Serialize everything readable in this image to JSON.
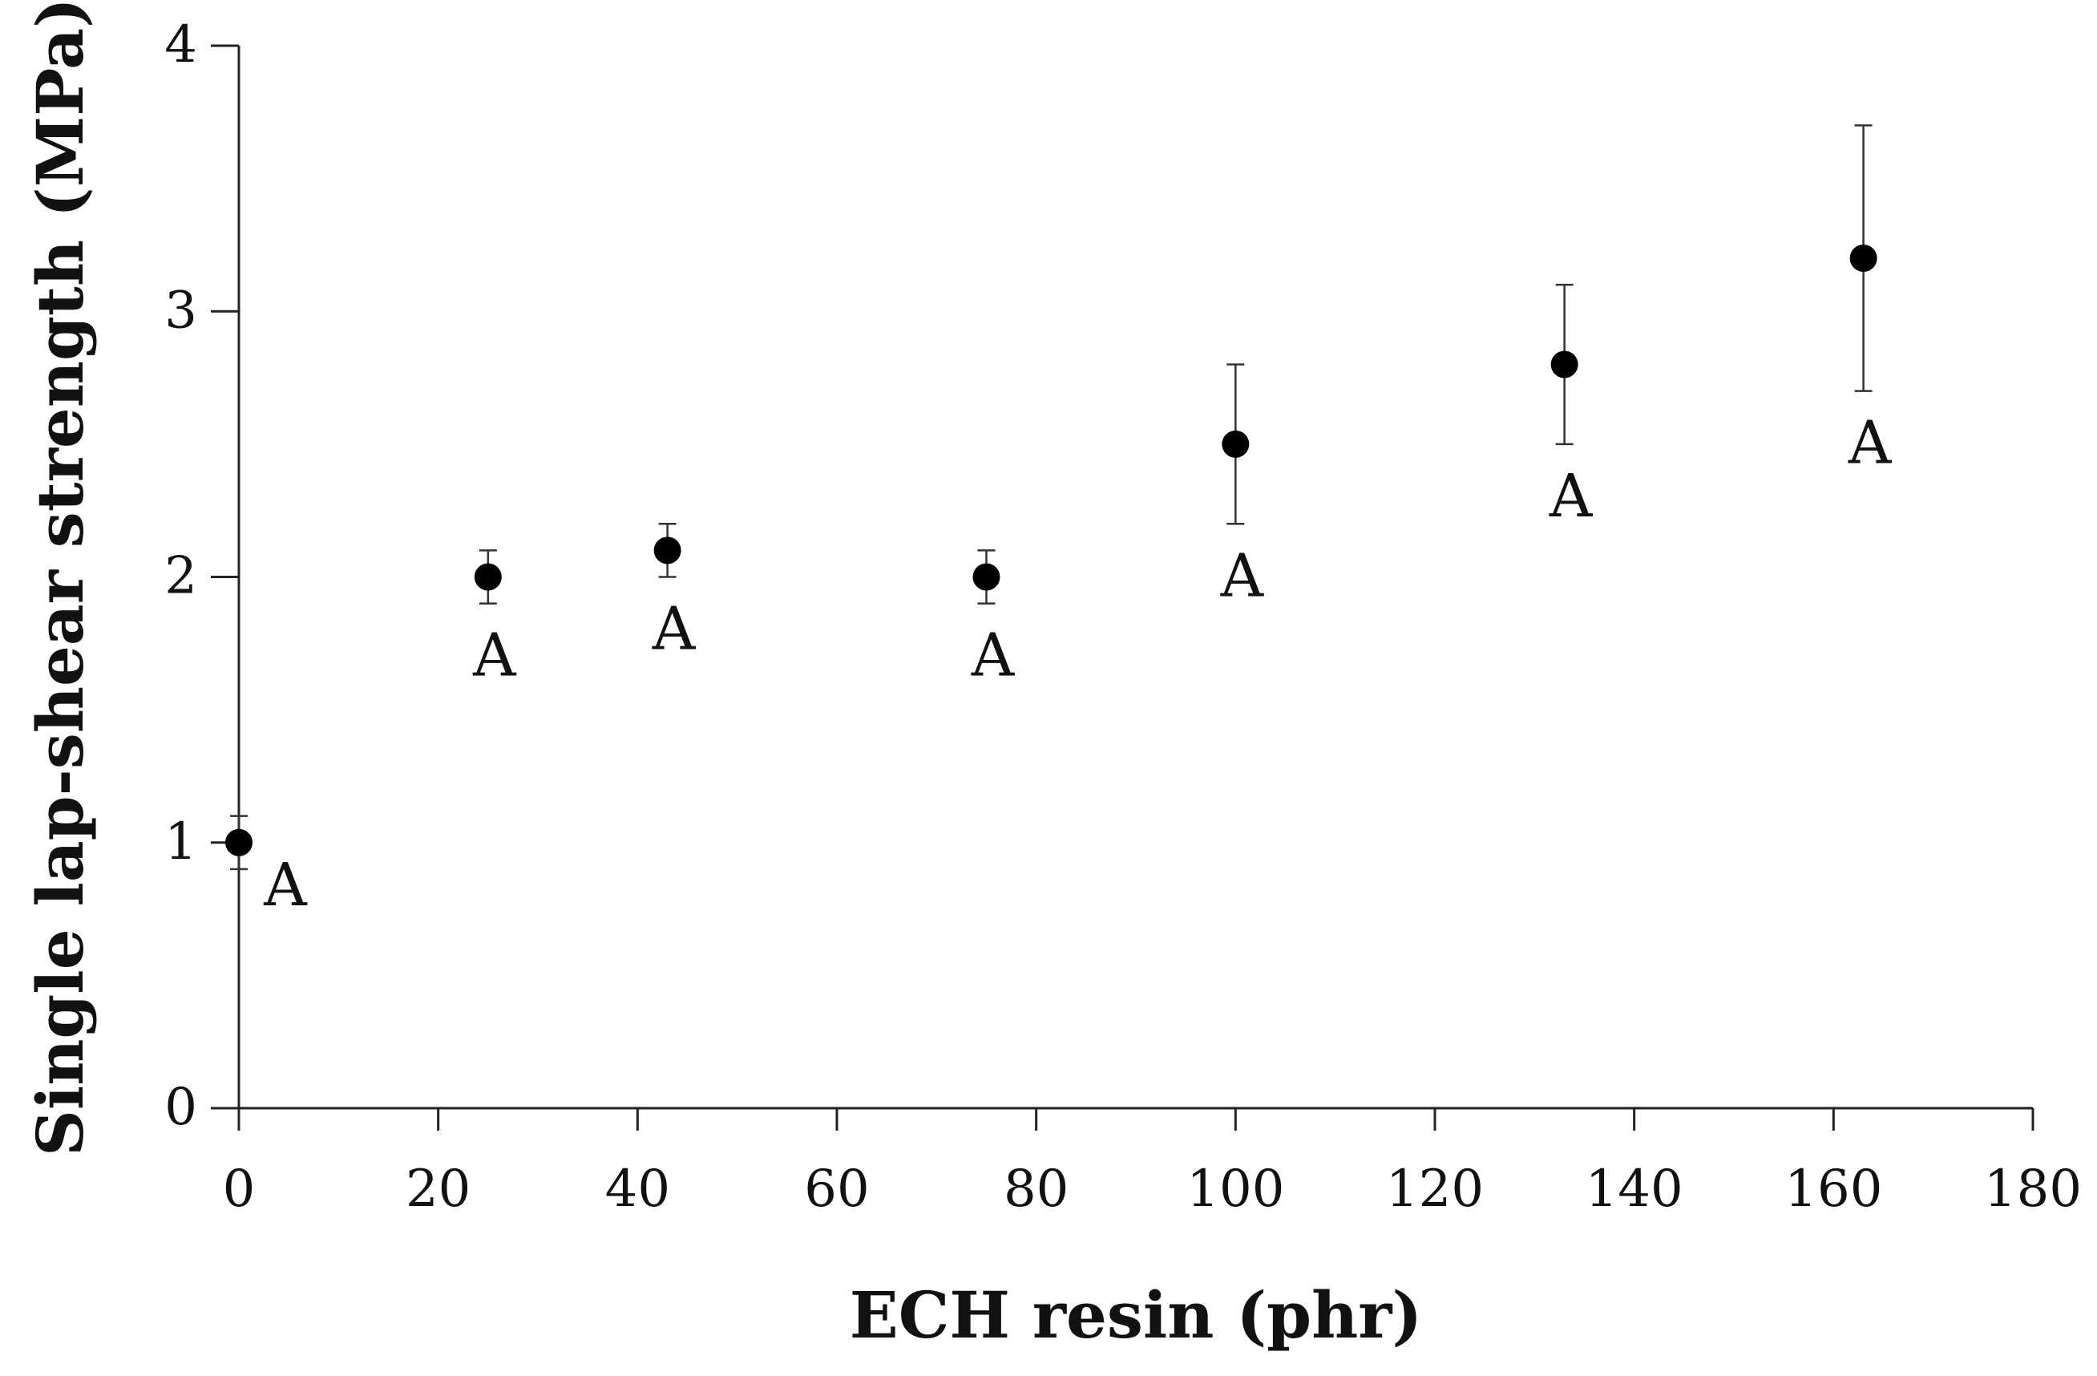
{
  "chart_data": {
    "type": "scatter",
    "title": "",
    "xlabel": "ECH resin (phr)",
    "ylabel": "Single lap-shear strength (MPa)",
    "xlim": [
      0,
      180
    ],
    "ylim": [
      0,
      4
    ],
    "x_ticks": [
      0,
      20,
      40,
      60,
      80,
      100,
      120,
      140,
      160,
      180
    ],
    "y_ticks": [
      0,
      1,
      2,
      3,
      4
    ],
    "grid": false,
    "legend": "none",
    "marker_color": "#000000",
    "series": [
      {
        "points": [
          {
            "x": 0,
            "y": 1.0,
            "err_low": 0.9,
            "err_high": 1.1,
            "label": "A"
          },
          {
            "x": 25,
            "y": 2.0,
            "err_low": 1.9,
            "err_high": 2.1,
            "label": "A"
          },
          {
            "x": 43,
            "y": 2.1,
            "err_low": 2.0,
            "err_high": 2.2,
            "label": "A"
          },
          {
            "x": 75,
            "y": 2.0,
            "err_low": 1.9,
            "err_high": 2.1,
            "label": "A"
          },
          {
            "x": 100,
            "y": 2.5,
            "err_low": 2.2,
            "err_high": 2.8,
            "label": "A"
          },
          {
            "x": 133,
            "y": 2.8,
            "err_low": 2.5,
            "err_high": 3.1,
            "label": "A"
          },
          {
            "x": 163,
            "y": 3.2,
            "err_low": 2.7,
            "err_high": 3.7,
            "label": "A"
          }
        ]
      }
    ]
  }
}
